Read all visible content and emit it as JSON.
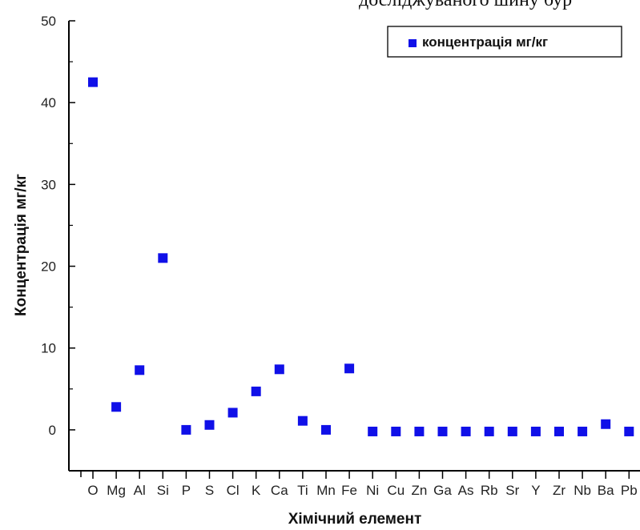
{
  "caption_cut": "досліджуваного шину бур",
  "chart_data": {
    "type": "scatter",
    "xlabel": "Хімічний елемент",
    "ylabel": "Концентрація мг/кг",
    "categories": [
      "O",
      "Mg",
      "Al",
      "Si",
      "P",
      "S",
      "Cl",
      "K",
      "Ca",
      "Ti",
      "Mn",
      "Fe",
      "Ni",
      "Cu",
      "Zn",
      "Ga",
      "As",
      "Rb",
      "Sr",
      "Y",
      "Zr",
      "Nb",
      "Ba",
      "Pb"
    ],
    "series": [
      {
        "name": "концентрація мг/кг",
        "color": "#1010e8",
        "marker": "square",
        "values": [
          42.5,
          2.8,
          7.3,
          21.0,
          0.0,
          0.6,
          2.1,
          4.7,
          7.4,
          1.1,
          0.0,
          7.5,
          -0.2,
          -0.2,
          -0.2,
          -0.2,
          -0.2,
          -0.2,
          -0.2,
          -0.2,
          -0.2,
          -0.2,
          0.7,
          -0.2
        ]
      }
    ],
    "ylim": [
      -5,
      50
    ],
    "yticks": [
      0,
      10,
      20,
      30,
      40,
      50
    ],
    "grid": false,
    "legend": "top-right"
  }
}
